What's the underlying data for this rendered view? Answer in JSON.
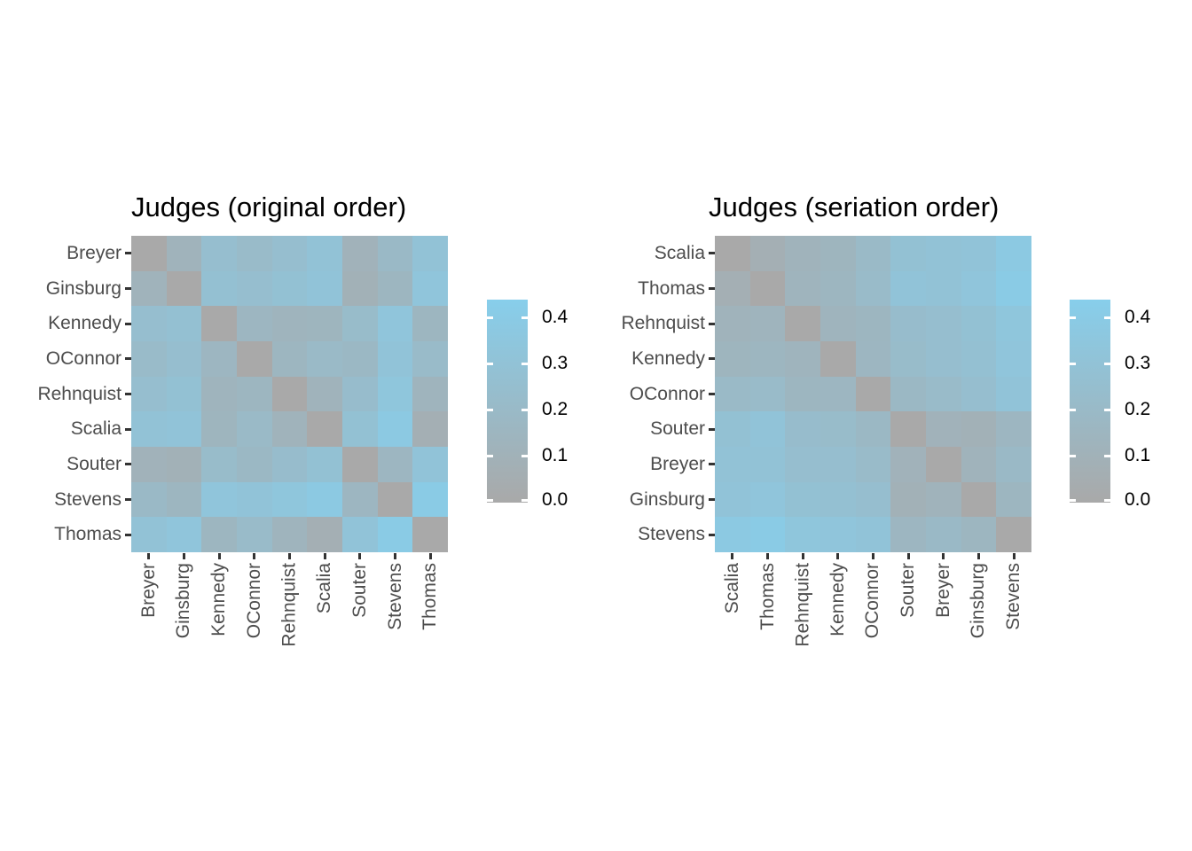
{
  "figure": {
    "background_color": "#FFFFFF",
    "scale": {
      "low_color": "#A9A9A9",
      "high_color": "#87CEEB",
      "limits": [
        0,
        0.44
      ],
      "legend_tick_labels": [
        "0.4",
        "0.3",
        "0.2",
        "0.1",
        "0.0"
      ],
      "legend_position": "right"
    }
  },
  "chart_data": [
    {
      "type": "heatmap",
      "title": "Judges (original order)",
      "rows": [
        "Breyer",
        "Ginsburg",
        "Kennedy",
        "OConnor",
        "Rehnquist",
        "Scalia",
        "Souter",
        "Stevens",
        "Thomas"
      ],
      "cols": [
        "Breyer",
        "Ginsburg",
        "Kennedy",
        "OConnor",
        "Rehnquist",
        "Scalia",
        "Souter",
        "Stevens",
        "Thomas"
      ],
      "values": [
        [
          0.0,
          0.12,
          0.25,
          0.21,
          0.25,
          0.3,
          0.11,
          0.19,
          0.3
        ],
        [
          0.12,
          0.0,
          0.27,
          0.25,
          0.28,
          0.31,
          0.09,
          0.15,
          0.33
        ],
        [
          0.25,
          0.27,
          0.0,
          0.16,
          0.13,
          0.14,
          0.22,
          0.33,
          0.15
        ],
        [
          0.21,
          0.25,
          0.16,
          0.0,
          0.15,
          0.2,
          0.18,
          0.31,
          0.21
        ],
        [
          0.25,
          0.28,
          0.13,
          0.15,
          0.0,
          0.12,
          0.23,
          0.34,
          0.13
        ],
        [
          0.3,
          0.31,
          0.14,
          0.2,
          0.12,
          0.0,
          0.28,
          0.38,
          0.07
        ],
        [
          0.11,
          0.09,
          0.22,
          0.18,
          0.23,
          0.28,
          0.0,
          0.16,
          0.31
        ],
        [
          0.19,
          0.15,
          0.33,
          0.31,
          0.34,
          0.38,
          0.16,
          0.0,
          0.4
        ],
        [
          0.3,
          0.33,
          0.15,
          0.21,
          0.13,
          0.07,
          0.31,
          0.4,
          0.0
        ]
      ],
      "legend_tick_labels": [
        "0.4",
        "0.3",
        "0.2",
        "0.1",
        "0.0"
      ]
    },
    {
      "type": "heatmap",
      "title": "Judges (seriation order)",
      "rows": [
        "Scalia",
        "Thomas",
        "Rehnquist",
        "Kennedy",
        "OConnor",
        "Souter",
        "Breyer",
        "Ginsburg",
        "Stevens"
      ],
      "cols": [
        "Scalia",
        "Thomas",
        "Rehnquist",
        "Kennedy",
        "OConnor",
        "Souter",
        "Breyer",
        "Ginsburg",
        "Stevens"
      ],
      "values": [
        [
          0.0,
          0.07,
          0.12,
          0.14,
          0.2,
          0.28,
          0.3,
          0.31,
          0.38
        ],
        [
          0.07,
          0.0,
          0.13,
          0.15,
          0.21,
          0.31,
          0.3,
          0.33,
          0.4
        ],
        [
          0.12,
          0.13,
          0.0,
          0.13,
          0.15,
          0.23,
          0.25,
          0.28,
          0.34
        ],
        [
          0.14,
          0.15,
          0.13,
          0.0,
          0.16,
          0.22,
          0.25,
          0.27,
          0.33
        ],
        [
          0.2,
          0.21,
          0.15,
          0.16,
          0.0,
          0.18,
          0.21,
          0.25,
          0.31
        ],
        [
          0.28,
          0.31,
          0.23,
          0.22,
          0.18,
          0.0,
          0.11,
          0.09,
          0.16
        ],
        [
          0.3,
          0.3,
          0.25,
          0.25,
          0.21,
          0.11,
          0.0,
          0.12,
          0.19
        ],
        [
          0.31,
          0.33,
          0.28,
          0.27,
          0.25,
          0.09,
          0.12,
          0.0,
          0.15
        ],
        [
          0.38,
          0.4,
          0.34,
          0.33,
          0.31,
          0.16,
          0.19,
          0.15,
          0.0
        ]
      ],
      "legend_tick_labels": [
        "0.4",
        "0.3",
        "0.2",
        "0.1",
        "0.0"
      ]
    }
  ]
}
